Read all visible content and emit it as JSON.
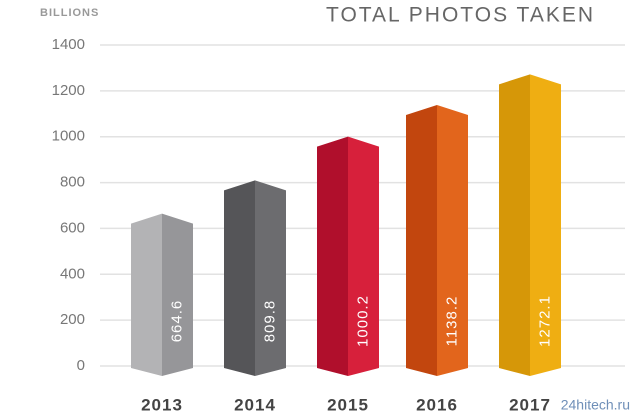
{
  "chart_data": {
    "type": "bar3d",
    "title": "TOTAL PHOTOS TAKEN",
    "y_axis_label": "BILLIONS",
    "categories": [
      "2013",
      "2014",
      "2015",
      "2016",
      "2017"
    ],
    "values": [
      664.6,
      809.8,
      1000.2,
      1138.2,
      1272.1
    ],
    "colors": [
      [
        "#b3b3b5",
        "#969699"
      ],
      [
        "#555558",
        "#6c6c6f"
      ],
      [
        "#b00f2c",
        "#d7203b"
      ],
      [
        "#c2460e",
        "#e2651c"
      ],
      [
        "#d69708",
        "#efae12"
      ]
    ],
    "ylim": [
      0,
      1400
    ],
    "yticks": [
      0,
      200,
      400,
      600,
      800,
      1000,
      1200,
      1400
    ],
    "grid": true,
    "watermark": "24hitech.ru"
  }
}
